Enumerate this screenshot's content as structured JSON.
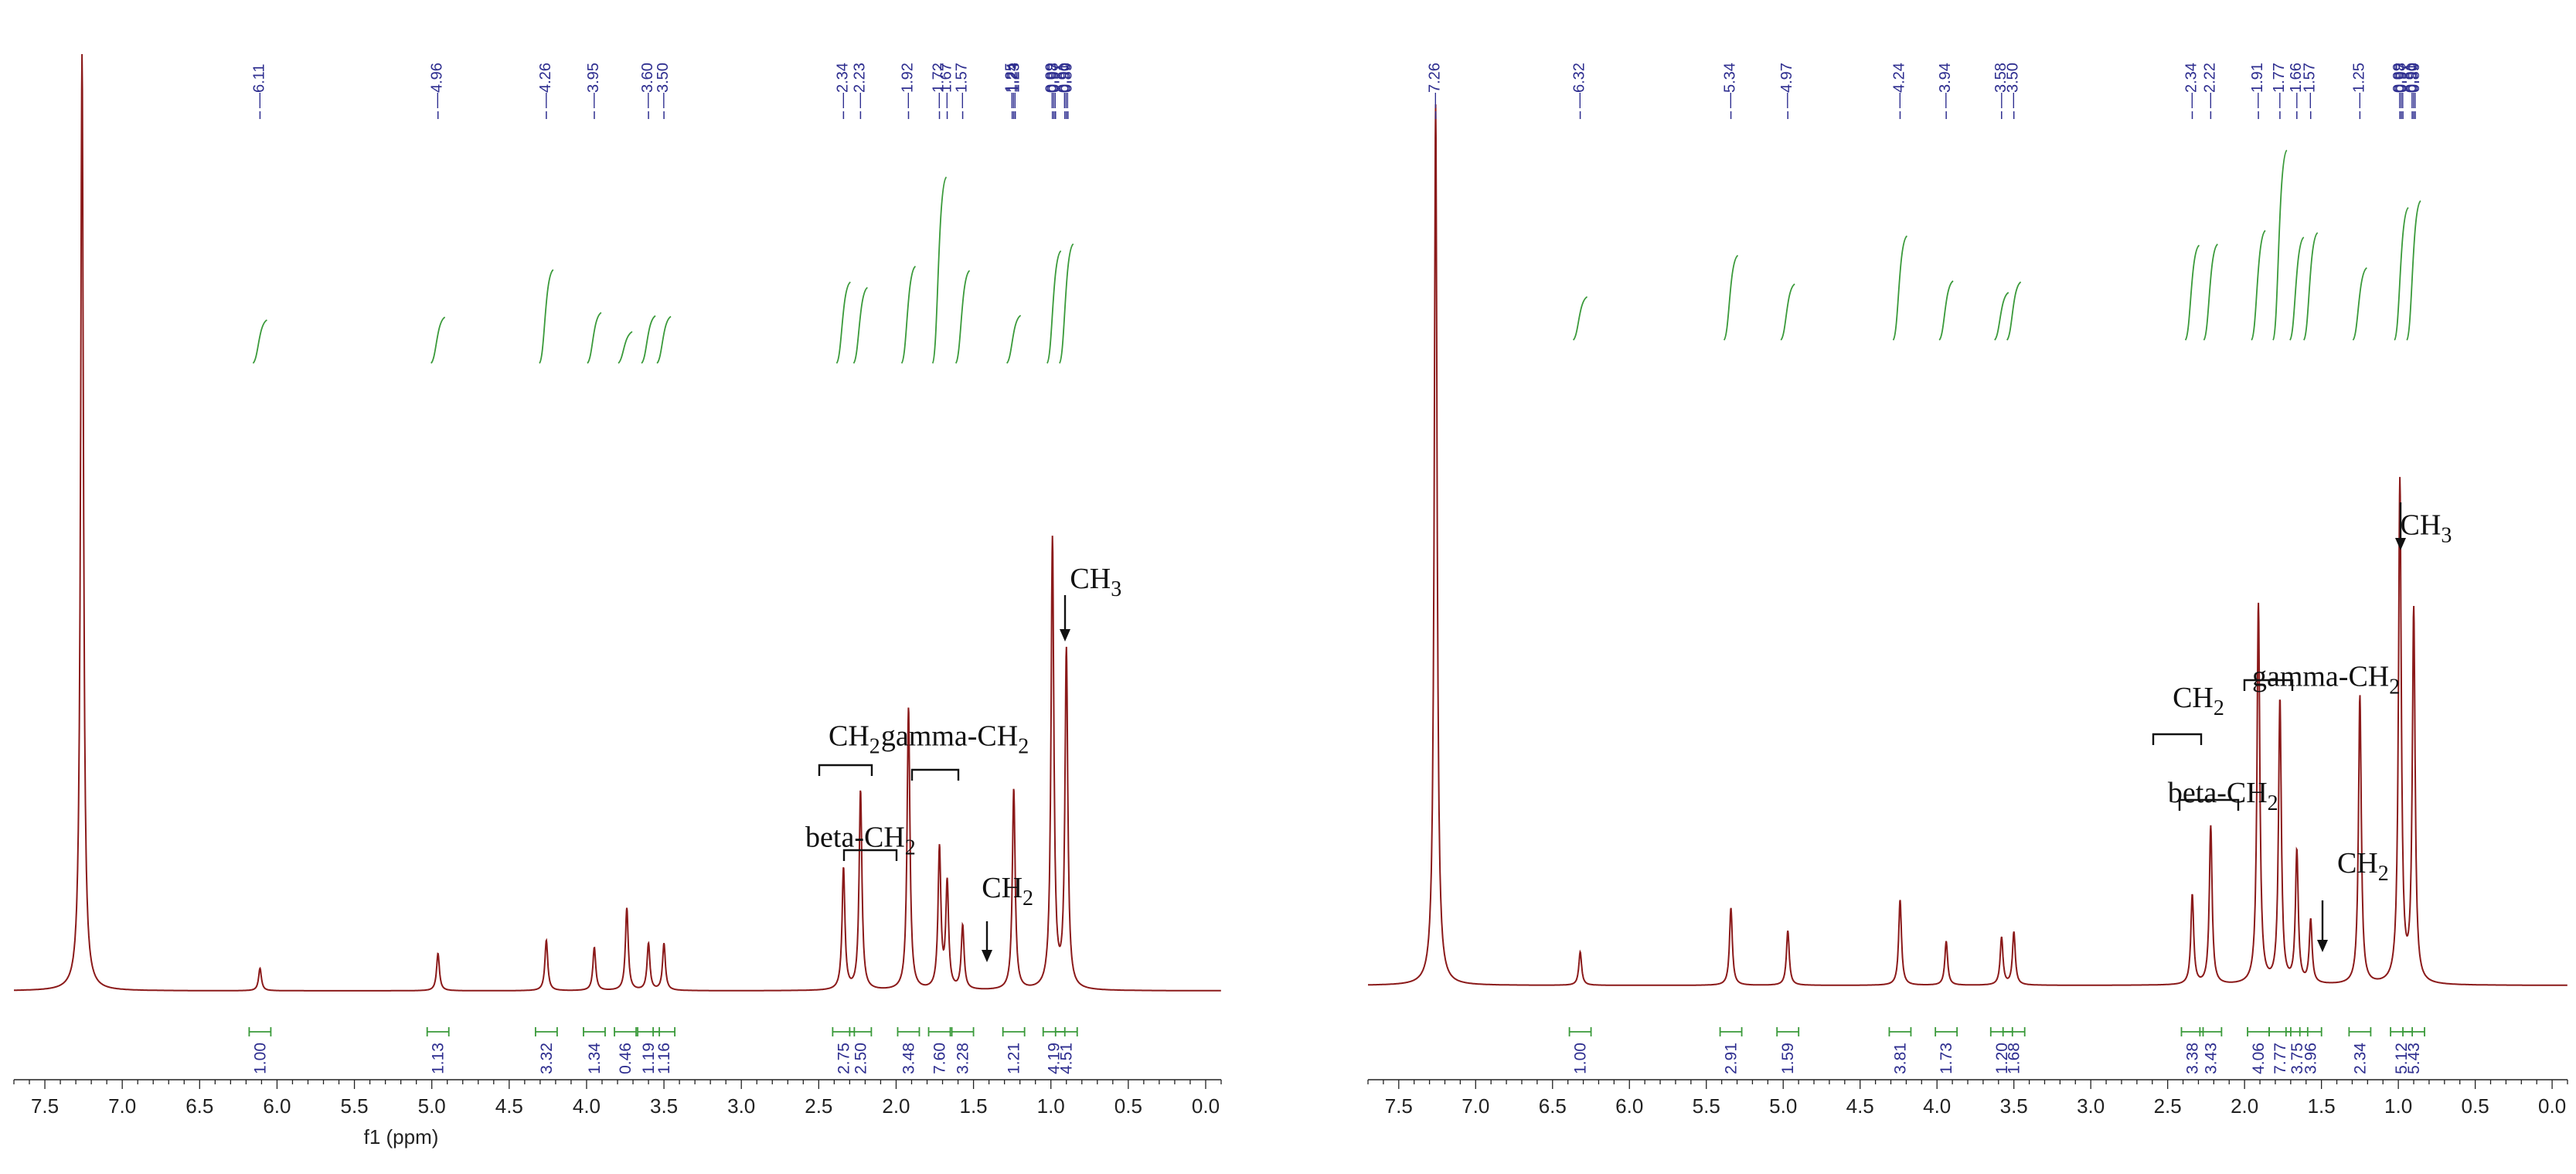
{
  "colors": {
    "spectrum": "#8b1a1a",
    "integral": "#3a9a3a",
    "peak_label": "#2d2d8f",
    "axis": "#222222"
  },
  "chart_data": [
    {
      "type": "line",
      "xlabel": "f1 (ppm)",
      "xlim": [
        7.7,
        -0.1
      ],
      "x_reversed": true,
      "xticks": [
        "7.5",
        "7.0",
        "6.5",
        "6.0",
        "5.5",
        "5.0",
        "4.5",
        "4.0",
        "3.5",
        "3.0",
        "2.5",
        "2.0",
        "1.5",
        "1.0",
        "0.5",
        "0.0"
      ],
      "peak_labels": [
        "6.11",
        "4.96",
        "4.26",
        "3.95",
        "3.60",
        "3.50",
        "2.34",
        "2.23",
        "1.92",
        "1.72",
        "1.67",
        "1.57",
        "1.25",
        "1.24",
        "1.23",
        "0.99",
        "0.98",
        "0.97",
        "0.91",
        "0.90",
        "0.89"
      ],
      "integrals": [
        {
          "x": 6.11,
          "value": "1.00"
        },
        {
          "x": 4.96,
          "value": "1.13"
        },
        {
          "x": 4.26,
          "value": "3.32"
        },
        {
          "x": 3.95,
          "value": "1.34"
        },
        {
          "x": 3.75,
          "value": "0.46"
        },
        {
          "x": 3.6,
          "value": "1.19"
        },
        {
          "x": 3.5,
          "value": "1.16"
        },
        {
          "x": 2.34,
          "value": "2.75"
        },
        {
          "x": 2.23,
          "value": "2.50"
        },
        {
          "x": 1.92,
          "value": "3.48"
        },
        {
          "x": 1.72,
          "value": "7.60"
        },
        {
          "x": 1.57,
          "value": "3.28"
        },
        {
          "x": 1.24,
          "value": "1.21"
        },
        {
          "x": 0.98,
          "value": "4.19"
        },
        {
          "x": 0.9,
          "value": "4.51"
        }
      ],
      "peaks": [
        {
          "x": 7.26,
          "h": 1.0
        },
        {
          "x": 6.11,
          "h": 0.024
        },
        {
          "x": 4.96,
          "h": 0.04
        },
        {
          "x": 4.26,
          "h": 0.054
        },
        {
          "x": 3.95,
          "h": 0.046
        },
        {
          "x": 3.74,
          "h": 0.088
        },
        {
          "x": 3.6,
          "h": 0.05
        },
        {
          "x": 3.5,
          "h": 0.05
        },
        {
          "x": 2.34,
          "h": 0.13
        },
        {
          "x": 2.23,
          "h": 0.213
        },
        {
          "x": 1.92,
          "h": 0.302
        },
        {
          "x": 1.72,
          "h": 0.15
        },
        {
          "x": 1.67,
          "h": 0.112
        },
        {
          "x": 1.57,
          "h": 0.068
        },
        {
          "x": 1.24,
          "h": 0.215
        },
        {
          "x": 0.99,
          "h": 0.48
        },
        {
          "x": 0.9,
          "h": 0.36
        }
      ],
      "annotations": [
        {
          "text": "CH",
          "sub": "2",
          "x": 2.27,
          "y": 0.262
        },
        {
          "text": "beta-CH",
          "sub": "2",
          "x": 2.23,
          "y": 0.154
        },
        {
          "text": "gamma-CH",
          "sub": "2",
          "x": 1.62,
          "y": 0.262
        },
        {
          "text": "CH",
          "sub": "2",
          "x": 1.28,
          "y": 0.1
        },
        {
          "text": "CH",
          "sub": "3",
          "x": 0.71,
          "y": 0.43
        }
      ]
    },
    {
      "type": "line",
      "xlabel": "",
      "xlim": [
        7.7,
        -0.1
      ],
      "x_reversed": true,
      "xticks": [
        "7.5",
        "7.0",
        "6.5",
        "6.0",
        "5.5",
        "5.0",
        "4.5",
        "4.0",
        "3.5",
        "3.0",
        "2.5",
        "2.0",
        "1.5",
        "1.0",
        "0.5",
        "0.0"
      ],
      "peak_labels": [
        "7.26",
        "6.32",
        "5.34",
        "4.97",
        "4.24",
        "3.94",
        "3.58",
        "3.50",
        "2.34",
        "2.22",
        "1.91",
        "1.77",
        "1.66",
        "1.57",
        "1.25",
        "0.99",
        "0.98",
        "0.97",
        "0.91",
        "0.90",
        "0.89"
      ],
      "integrals": [
        {
          "x": 6.32,
          "value": "1.00"
        },
        {
          "x": 5.34,
          "value": "2.91"
        },
        {
          "x": 4.97,
          "value": "1.59"
        },
        {
          "x": 4.24,
          "value": "3.81"
        },
        {
          "x": 3.94,
          "value": "1.73"
        },
        {
          "x": 3.58,
          "value": "1.20"
        },
        {
          "x": 3.5,
          "value": "1.68"
        },
        {
          "x": 2.34,
          "value": "3.38"
        },
        {
          "x": 2.22,
          "value": "3.43"
        },
        {
          "x": 1.91,
          "value": "4.06"
        },
        {
          "x": 1.77,
          "value": "7.77"
        },
        {
          "x": 1.66,
          "value": "3.75"
        },
        {
          "x": 1.57,
          "value": "3.96"
        },
        {
          "x": 1.25,
          "value": "2.34"
        },
        {
          "x": 0.98,
          "value": "5.12"
        },
        {
          "x": 0.9,
          "value": "5.43"
        }
      ],
      "peaks": [
        {
          "x": 7.26,
          "h": 1.0
        },
        {
          "x": 6.32,
          "h": 0.038
        },
        {
          "x": 5.34,
          "h": 0.088
        },
        {
          "x": 4.97,
          "h": 0.062
        },
        {
          "x": 4.24,
          "h": 0.097
        },
        {
          "x": 3.94,
          "h": 0.05
        },
        {
          "x": 3.58,
          "h": 0.054
        },
        {
          "x": 3.5,
          "h": 0.06
        },
        {
          "x": 2.34,
          "h": 0.102
        },
        {
          "x": 2.22,
          "h": 0.18
        },
        {
          "x": 1.91,
          "h": 0.432
        },
        {
          "x": 1.77,
          "h": 0.322
        },
        {
          "x": 1.66,
          "h": 0.15
        },
        {
          "x": 1.57,
          "h": 0.072
        },
        {
          "x": 1.25,
          "h": 0.328
        },
        {
          "x": 0.99,
          "h": 0.57
        },
        {
          "x": 0.9,
          "h": 0.422
        }
      ],
      "annotations": [
        {
          "text": "CH",
          "sub": "2",
          "x": 2.3,
          "y": 0.316
        },
        {
          "text": "beta-CH",
          "sub": "2",
          "x": 2.14,
          "y": 0.208
        },
        {
          "text": "gamma-CH",
          "sub": "2",
          "x": 1.47,
          "y": 0.34
        },
        {
          "text": "CH",
          "sub": "2",
          "x": 1.23,
          "y": 0.128
        },
        {
          "text": "CH",
          "sub": "3",
          "x": 0.82,
          "y": 0.512
        }
      ]
    }
  ]
}
